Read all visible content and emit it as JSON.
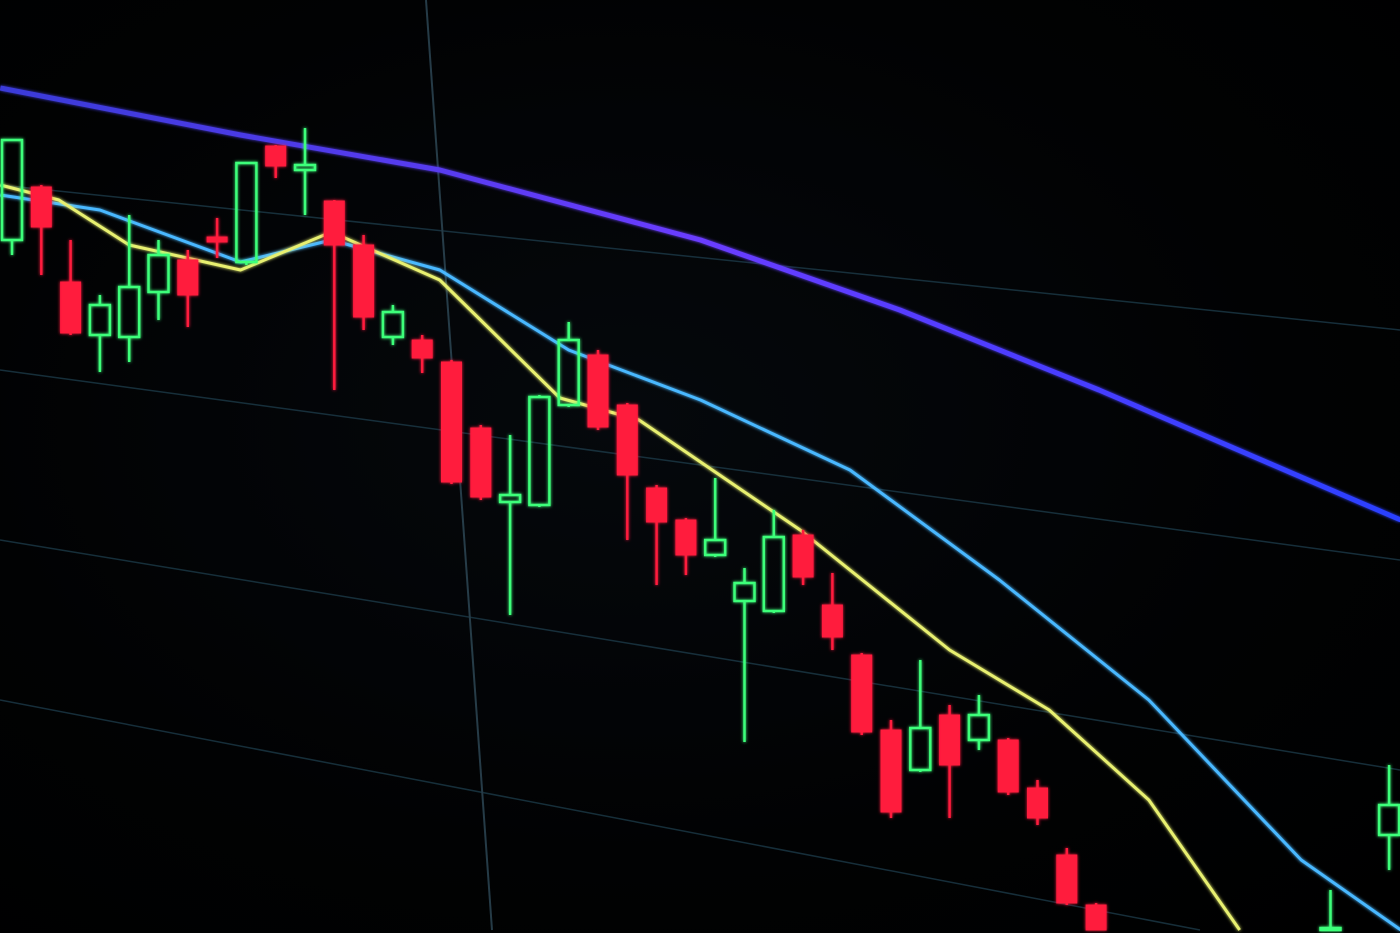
{
  "chart_data": {
    "type": "candlestick",
    "title": "",
    "xlabel": "",
    "ylabel": "",
    "grid": true,
    "colors": {
      "up": "#3dff7a",
      "down": "#ff1a3c",
      "ma_slow": "#5a3cff",
      "ma_mid": "#4ab8ff",
      "ma_fast": "#e8f070",
      "grid": "#1c3a48"
    },
    "candles": [
      {
        "i": 0,
        "o": 76,
        "h": 86,
        "l": 74.5,
        "c": 86
      },
      {
        "i": 1,
        "o": 81.3,
        "h": 81.5,
        "l": 72.5,
        "c": 77.3
      },
      {
        "i": 2,
        "o": 71.8,
        "h": 76,
        "l": 66.5,
        "c": 66.7
      },
      {
        "i": 3,
        "o": 66.5,
        "h": 70.5,
        "l": 62.8,
        "c": 69.5
      },
      {
        "i": 4,
        "o": 66.3,
        "h": 78.5,
        "l": 63.8,
        "c": 71.3
      },
      {
        "i": 5,
        "o": 70.8,
        "h": 76,
        "l": 68,
        "c": 74.5
      },
      {
        "i": 6,
        "o": 74,
        "h": 75,
        "l": 67.3,
        "c": 70.5
      },
      {
        "i": 7,
        "o": 76.3,
        "h": 78.2,
        "l": 74.2,
        "c": 75.8
      },
      {
        "i": 8,
        "o": 73.8,
        "h": 83.7,
        "l": 73.5,
        "c": 83.7
      },
      {
        "i": 9,
        "o": 85.4,
        "h": 85.5,
        "l": 82.2,
        "c": 83.4
      },
      {
        "i": 10,
        "o": 83,
        "h": 87.2,
        "l": 78.5,
        "c": 83.5
      },
      {
        "i": 11,
        "o": 79.9,
        "h": 80,
        "l": 61,
        "c": 75.5
      },
      {
        "i": 12,
        "o": 75.5,
        "h": 76.5,
        "l": 67,
        "c": 68.3
      },
      {
        "i": 13,
        "o": 66.3,
        "h": 69.5,
        "l": 65.5,
        "c": 68.8
      },
      {
        "i": 14,
        "o": 66,
        "h": 66.5,
        "l": 62.7,
        "c": 64.2
      },
      {
        "i": 15,
        "o": 63.8,
        "h": 64,
        "l": 51.6,
        "c": 51.8
      },
      {
        "i": 16,
        "o": 57.2,
        "h": 57.5,
        "l": 50,
        "c": 50.3
      },
      {
        "i": 17,
        "o": 49.8,
        "h": 56.5,
        "l": 38.5,
        "c": 50.5
      },
      {
        "i": 18,
        "o": 49.5,
        "h": 60.5,
        "l": 49.3,
        "c": 60.3
      },
      {
        "i": 19,
        "o": 59.5,
        "h": 67.8,
        "l": 59.3,
        "c": 66
      },
      {
        "i": 20,
        "o": 64.5,
        "h": 65,
        "l": 57,
        "c": 57.3
      },
      {
        "i": 21,
        "o": 59.5,
        "h": 59.7,
        "l": 46,
        "c": 52.5
      },
      {
        "i": 22,
        "o": 51.2,
        "h": 51.5,
        "l": 41.5,
        "c": 47.8
      },
      {
        "i": 23,
        "o": 48,
        "h": 48.2,
        "l": 42.5,
        "c": 44.5
      },
      {
        "i": 24,
        "o": 44.5,
        "h": 52.2,
        "l": 44.3,
        "c": 46
      },
      {
        "i": 25,
        "o": 39.9,
        "h": 43.2,
        "l": 25.8,
        "c": 41.7
      },
      {
        "i": 26,
        "o": 38.9,
        "h": 49,
        "l": 38.7,
        "c": 46.3
      },
      {
        "i": 27,
        "o": 46.5,
        "h": 47,
        "l": 41.5,
        "c": 42.3
      },
      {
        "i": 28,
        "o": 39.5,
        "h": 42.7,
        "l": 35,
        "c": 36.3
      },
      {
        "i": 29,
        "o": 34.5,
        "h": 34.7,
        "l": 26.5,
        "c": 26.8
      },
      {
        "i": 30,
        "o": 27,
        "h": 28,
        "l": 18.2,
        "c": 18.8
      },
      {
        "i": 31,
        "o": 23,
        "h": 34,
        "l": 22.8,
        "c": 27.2
      },
      {
        "i": 32,
        "o": 28.5,
        "h": 29.5,
        "l": 18.2,
        "c": 23.5
      },
      {
        "i": 33,
        "o": 26,
        "h": 30.5,
        "l": 25,
        "c": 28.5
      },
      {
        "i": 34,
        "o": 26,
        "h": 26.2,
        "l": 20.5,
        "c": 20.8
      },
      {
        "i": 35,
        "o": 21.2,
        "h": 22,
        "l": 17.5,
        "c": 18.2
      },
      {
        "i": 36,
        "o": 14.5,
        "h": 15.2,
        "l": 9.5,
        "c": 9.7
      },
      {
        "i": 37,
        "o": 9.5,
        "h": 9.7,
        "l": 5,
        "c": 5
      },
      {
        "i": 45,
        "o": 0,
        "h": 11,
        "l": 0,
        "c": 7.2
      },
      {
        "i": 47,
        "o": 16.5,
        "h": 23.5,
        "l": 13,
        "c": 19.5
      }
    ],
    "series": [
      {
        "key": "ma_slow",
        "points": [
          [
            -0.4,
            91.2
          ],
          [
            7.8,
            86.5
          ],
          [
            14.6,
            83
          ],
          [
            23.5,
            76
          ],
          [
            30.3,
            69
          ],
          [
            37.1,
            61
          ],
          [
            47.4,
            48
          ]
        ]
      },
      {
        "key": "ma_mid",
        "points": [
          [
            -0.4,
            80.5
          ],
          [
            3,
            79
          ],
          [
            7.8,
            73.8
          ],
          [
            10.9,
            76
          ],
          [
            14.6,
            73
          ],
          [
            19,
            65
          ],
          [
            23.5,
            60
          ],
          [
            28.6,
            53
          ],
          [
            33.7,
            42
          ],
          [
            38.8,
            30
          ],
          [
            44,
            14
          ],
          [
            47.4,
            6.7
          ]
        ]
      },
      {
        "key": "ma_fast",
        "points": [
          [
            -0.4,
            81.5
          ],
          [
            1.6,
            80
          ],
          [
            4,
            75.5
          ],
          [
            7.8,
            73
          ],
          [
            10.9,
            76.8
          ],
          [
            14.6,
            72
          ],
          [
            18.7,
            60.2
          ],
          [
            21.4,
            58
          ],
          [
            26.9,
            47
          ],
          [
            32,
            35
          ],
          [
            35.4,
            29
          ],
          [
            38.8,
            20
          ],
          [
            41.9,
            6.7
          ]
        ]
      }
    ]
  }
}
